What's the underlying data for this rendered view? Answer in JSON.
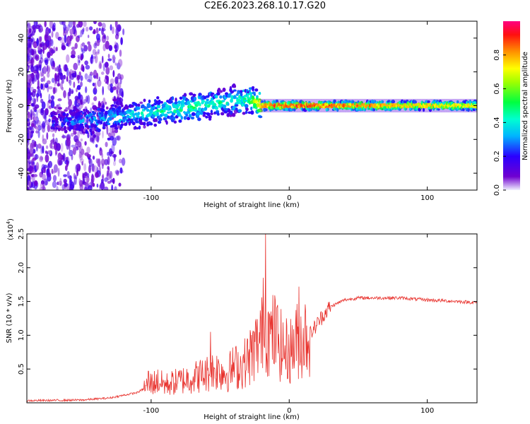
{
  "title": "C2E6.2023.268.10.17.G20",
  "chart_data": [
    {
      "type": "heatmap",
      "xlabel": "Height of straight line (km)",
      "ylabel": "Frequency (Hz)",
      "xlim": [
        -190,
        136
      ],
      "ylim": [
        -50,
        50
      ],
      "x_ticks": [
        -100,
        0,
        100
      ],
      "y_ticks": [
        -40,
        -20,
        0,
        20,
        40
      ],
      "colorbar": {
        "label": "Normalized spectral amplitude",
        "range": [
          0.0,
          1.0
        ],
        "ticks": [
          "0.0",
          "0.2",
          "0.4",
          "0.6",
          "0.8"
        ]
      },
      "ridge": {
        "x": [
          -170,
          -150,
          -130,
          -110,
          -90,
          -70,
          -55,
          -40,
          -30,
          -20,
          -10,
          0,
          20,
          60,
          100,
          136
        ],
        "freq": [
          -9,
          -9,
          -7,
          -5,
          -3,
          -1,
          1,
          3,
          4,
          0,
          0,
          0,
          0,
          0,
          0,
          0
        ],
        "amplitude": [
          0.2,
          0.3,
          0.35,
          0.4,
          0.45,
          0.5,
          0.45,
          0.45,
          0.5,
          0.85,
          0.9,
          0.9,
          0.9,
          0.85,
          0.8,
          0.75
        ]
      },
      "grid": false
    },
    {
      "type": "line",
      "xlabel": "Height of straight line (km)",
      "ylabel": "SNR (10 * v/v)",
      "y_multiplier": "(x10",
      "y_multiplier_exponent": "4",
      "y_multiplier_close": ")",
      "xlim": [
        -190,
        136
      ],
      "ylim": [
        0,
        2.5
      ],
      "x_ticks": [
        -100,
        0,
        100
      ],
      "y_ticks": [
        0.5,
        1.0,
        1.5,
        2.0,
        2.5
      ],
      "y_tick_labels": [
        "0.5",
        "1.0",
        "1.5",
        "2.0",
        "2.5"
      ],
      "series": [
        {
          "color": "#e8322d",
          "x": [
            -190,
            -150,
            -130,
            -110,
            -100,
            -95,
            -90,
            -80,
            -70,
            -60,
            -55,
            -50,
            -45,
            -40,
            -35,
            -30,
            -25,
            -20,
            -17,
            -15,
            -10,
            -5,
            0,
            5,
            10,
            15,
            20,
            25,
            30,
            40,
            50,
            60,
            80,
            100,
            120,
            136
          ],
          "y": [
            0.03,
            0.04,
            0.07,
            0.15,
            0.27,
            0.3,
            0.25,
            0.3,
            0.35,
            0.4,
            0.45,
            0.45,
            0.4,
            0.5,
            0.5,
            0.6,
            0.75,
            0.9,
            1.2,
            0.9,
            0.95,
            0.75,
            0.7,
            0.85,
            0.9,
            1.0,
            1.15,
            1.3,
            1.42,
            1.52,
            1.55,
            1.55,
            1.55,
            1.52,
            1.5,
            1.48
          ]
        }
      ],
      "spikes": [
        {
          "x": -17,
          "y": 2.5
        },
        {
          "x": -19,
          "y": 1.85
        },
        {
          "x": -15,
          "y": 1.35
        },
        {
          "x": 7,
          "y": 1.72
        },
        {
          "x": -57,
          "y": 1.05
        },
        {
          "x": -102,
          "y": 0.47
        }
      ],
      "grid": false
    }
  ]
}
